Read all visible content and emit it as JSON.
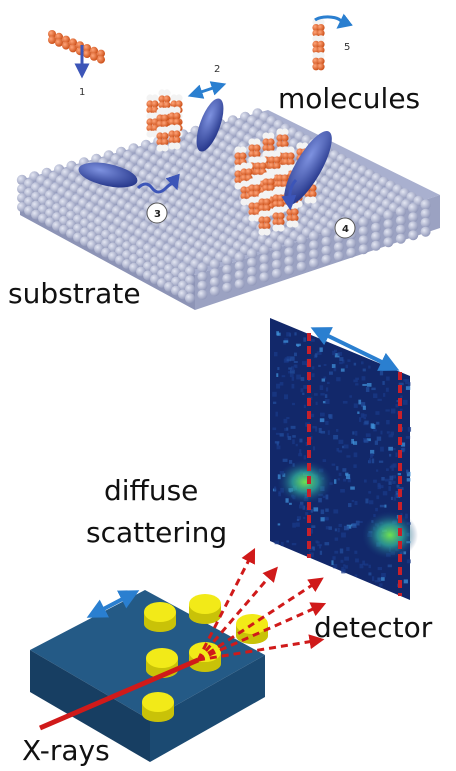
{
  "top_panel": {
    "label_molecules": "molecules",
    "label_substrate": "substrate",
    "step_numbers": [
      "1",
      "2",
      "3",
      "4",
      "5"
    ]
  },
  "bottom_panel": {
    "label_scattering_1": "diffuse",
    "label_scattering_2": "scattering",
    "label_detector": "detector",
    "label_xrays": "X-rays"
  },
  "colors": {
    "substrate_atoms": "#b8bed8",
    "molecule_orange": "#e8662a",
    "molecule_blue": "#3c55b8",
    "arrow_blue": "#2a7fd0",
    "beam_red": "#d01a1a",
    "detector_dash": "#c8202a",
    "sample_block": "#1e4f7a",
    "islands": "#f2ea18"
  }
}
